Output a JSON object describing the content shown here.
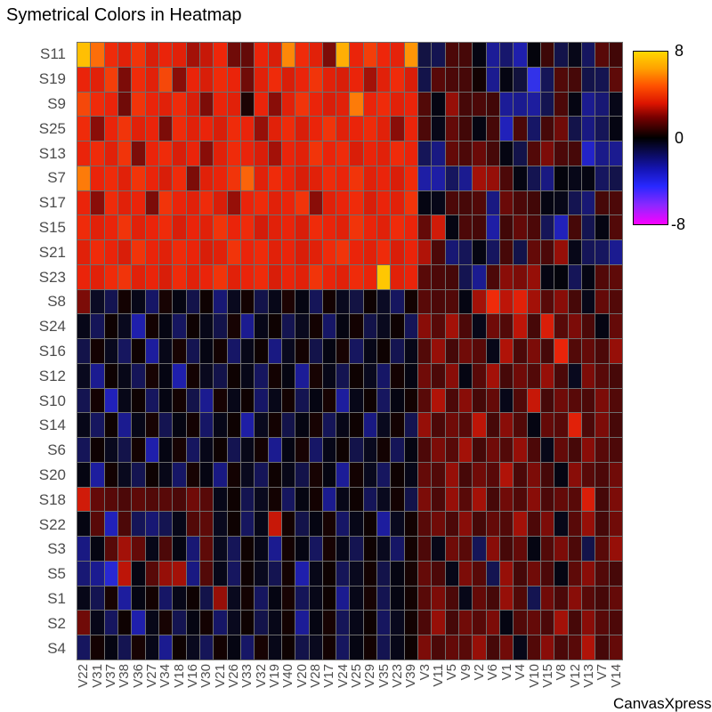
{
  "title": "Symetrical Colors in Heatmap",
  "watermark": "CanvasXpress",
  "colors": {
    "background": "#FFFFFF",
    "axis_label": "#4D4D4D",
    "grid_line": "#6E6E6E",
    "scale_max_color": "#FFD700",
    "scale_zero_color": "#000000",
    "scale_min_color": "#FF00FF"
  },
  "colorbar": {
    "ticks": {
      "max": "8",
      "zero": "0",
      "min": "-8"
    },
    "max": 8,
    "min": -8
  },
  "chart_data": {
    "type": "heatmap",
    "title": "Symetrical Colors in Heatmap",
    "zlim": [
      -8,
      8
    ],
    "legend_position": "right",
    "rows": [
      "S11",
      "S19",
      "S9",
      "S25",
      "S13",
      "S7",
      "S17",
      "S15",
      "S21",
      "S23",
      "S8",
      "S24",
      "S16",
      "S12",
      "S10",
      "S14",
      "S6",
      "S20",
      "S18",
      "S22",
      "S3",
      "S5",
      "S1",
      "S2",
      "S4"
    ],
    "columns": [
      "V22",
      "V31",
      "V37",
      "V38",
      "V36",
      "V27",
      "V34",
      "V18",
      "V16",
      "V30",
      "V21",
      "V26",
      "V33",
      "V32",
      "V19",
      "V40",
      "V20",
      "V28",
      "V17",
      "V24",
      "V25",
      "V29",
      "V35",
      "V23",
      "V39",
      "V3",
      "V11",
      "V5",
      "V9",
      "V2",
      "V6",
      "V1",
      "V4",
      "V10",
      "V15",
      "V8",
      "V12",
      "V13",
      "V7",
      "V14"
    ],
    "matrix": [
      [
        7.4,
        6.0,
        4.6,
        4.2,
        4.8,
        4.0,
        4.4,
        4.2,
        3.0,
        3.6,
        4.5,
        2.2,
        2.0,
        4.4,
        4.0,
        6.4,
        4.6,
        4.2,
        2.4,
        7.0,
        4.4,
        5.0,
        4.5,
        4.3,
        6.6,
        -1.1,
        -1.3,
        1.6,
        1.5,
        -0.3,
        -2.3,
        -1.7,
        -2.6,
        -0.2,
        1.3,
        -1.2,
        -0.4,
        -1.5,
        1.8,
        1.4
      ],
      [
        4.4,
        4.2,
        5.0,
        2.4,
        4.6,
        4.2,
        5.2,
        2.6,
        4.4,
        4.0,
        4.6,
        4.4,
        2.2,
        4.2,
        4.6,
        4.0,
        4.4,
        4.8,
        4.2,
        4.0,
        4.4,
        3.0,
        4.2,
        4.6,
        4.0,
        -1.2,
        1.8,
        1.6,
        1.5,
        0.4,
        -2.2,
        -0.3,
        -1.0,
        -3.6,
        -1.4,
        1.7,
        1.5,
        -1.2,
        -1.3,
        1.9
      ],
      [
        5.2,
        4.6,
        4.4,
        2.2,
        4.8,
        4.4,
        4.2,
        4.6,
        4.0,
        2.4,
        4.4,
        4.2,
        0.6,
        4.4,
        2.6,
        4.2,
        4.8,
        4.4,
        4.0,
        4.2,
        6.2,
        4.4,
        4.6,
        4.2,
        4.4,
        1.7,
        -0.3,
        2.8,
        1.5,
        1.6,
        1.4,
        -2.3,
        -2.2,
        -2.4,
        -1.3,
        1.6,
        -0.3,
        -2.2,
        -1.8,
        -0.4
      ],
      [
        4.6,
        2.6,
        4.4,
        4.8,
        4.2,
        4.4,
        2.4,
        4.6,
        4.2,
        4.4,
        4.0,
        4.6,
        4.4,
        2.8,
        4.2,
        4.6,
        4.0,
        4.4,
        4.8,
        4.2,
        4.4,
        4.6,
        4.2,
        2.6,
        4.4,
        1.6,
        -0.4,
        2.0,
        1.4,
        -0.3,
        1.5,
        -2.8,
        1.6,
        -1.6,
        1.5,
        2.2,
        -1.2,
        -2.0,
        -1.4,
        -0.3
      ],
      [
        4.4,
        4.6,
        4.2,
        4.8,
        2.4,
        4.4,
        4.6,
        4.0,
        4.4,
        2.6,
        4.2,
        4.6,
        4.4,
        4.0,
        3.0,
        4.4,
        4.2,
        4.8,
        4.4,
        4.6,
        4.0,
        4.4,
        4.2,
        4.6,
        4.4,
        -1.4,
        -2.0,
        2.0,
        1.6,
        2.1,
        1.5,
        -0.3,
        -1.2,
        1.7,
        2.4,
        1.6,
        1.5,
        -3.0,
        -2.1,
        -2.2
      ],
      [
        6.2,
        4.4,
        4.6,
        4.2,
        4.8,
        4.4,
        4.0,
        4.6,
        2.4,
        4.2,
        4.4,
        4.8,
        5.8,
        4.2,
        4.6,
        4.4,
        4.0,
        4.2,
        4.6,
        4.4,
        4.8,
        4.2,
        4.4,
        4.0,
        4.6,
        -2.5,
        -2.5,
        -1.5,
        -2.2,
        3.0,
        2.8,
        1.6,
        -0.3,
        -1.3,
        -2.0,
        -0.2,
        -0.4,
        -0.3,
        -1.5,
        -1.2
      ],
      [
        4.4,
        2.6,
        4.6,
        4.2,
        4.4,
        2.4,
        4.8,
        4.4,
        4.2,
        4.6,
        4.0,
        2.8,
        4.4,
        4.6,
        4.2,
        4.4,
        4.8,
        2.6,
        4.2,
        4.4,
        4.6,
        4.0,
        4.4,
        4.2,
        4.8,
        -0.3,
        -0.4,
        1.6,
        1.5,
        1.7,
        -2.0,
        2.1,
        1.6,
        1.4,
        -0.3,
        -0.4,
        -1.3,
        -1.8,
        1.5,
        1.6
      ],
      [
        4.6,
        4.2,
        4.4,
        4.8,
        4.2,
        4.4,
        4.6,
        4.0,
        4.4,
        4.2,
        4.8,
        4.4,
        4.6,
        3.9,
        4.2,
        4.4,
        4.0,
        4.6,
        4.4,
        4.2,
        4.8,
        4.4,
        4.2,
        4.6,
        4.4,
        2.0,
        3.8,
        -0.3,
        1.6,
        1.5,
        -2.5,
        1.4,
        2.0,
        1.6,
        -1.4,
        -2.8,
        1.5,
        -1.3,
        -0.3,
        1.7
      ],
      [
        4.2,
        4.6,
        4.4,
        4.0,
        4.8,
        4.4,
        4.2,
        4.6,
        4.4,
        4.0,
        4.2,
        4.8,
        4.4,
        4.6,
        4.2,
        4.4,
        4.0,
        4.2,
        4.6,
        4.8,
        4.4,
        4.2,
        4.6,
        4.0,
        4.4,
        3.2,
        1.6,
        -1.8,
        -1.4,
        -0.3,
        -1.5,
        1.5,
        -1.2,
        2.0,
        1.6,
        2.8,
        -0.4,
        -1.4,
        -1.5,
        -2.2
      ],
      [
        4.4,
        4.2,
        4.6,
        4.8,
        4.2,
        4.4,
        4.0,
        4.6,
        4.2,
        4.4,
        4.8,
        4.2,
        4.4,
        4.6,
        4.0,
        4.4,
        4.2,
        4.8,
        4.4,
        4.2,
        4.6,
        4.4,
        7.6,
        4.2,
        4.4,
        1.8,
        1.6,
        1.5,
        -1.3,
        -2.2,
        1.6,
        2.6,
        2.4,
        2.8,
        -0.3,
        -0.2,
        -1.4,
        -0.3,
        1.7,
        1.9
      ],
      [
        2.4,
        -0.6,
        -1.3,
        0.4,
        -0.4,
        -1.6,
        0.5,
        -0.3,
        -1.2,
        0.3,
        -1.8,
        -0.5,
        0.4,
        -1.2,
        -0.4,
        0.6,
        -0.3,
        -1.4,
        0.4,
        -0.5,
        -1.1,
        0.3,
        -0.6,
        -1.5,
        0.4,
        1.8,
        1.6,
        1.7,
        -0.3,
        3.0,
        4.6,
        3.4,
        4.2,
        3.0,
        1.8,
        2.6,
        1.5,
        -0.4,
        2.0,
        1.7
      ],
      [
        -0.4,
        -1.4,
        0.3,
        -0.5,
        -2.6,
        0.4,
        -0.3,
        -1.5,
        0.3,
        -0.4,
        -1.2,
        0.5,
        -2.2,
        -0.4,
        0.3,
        -1.3,
        -0.5,
        0.4,
        -1.6,
        -0.3,
        0.4,
        -1.2,
        -0.5,
        0.3,
        -1.4,
        2.6,
        1.8,
        3.0,
        1.6,
        -0.4,
        2.2,
        1.7,
        3.4,
        1.5,
        4.0,
        1.8,
        2.4,
        1.6,
        -0.3,
        2.0
      ],
      [
        -1.2,
        0.4,
        -0.5,
        -1.5,
        0.3,
        -2.4,
        -0.4,
        0.5,
        -1.3,
        -0.3,
        0.4,
        -1.6,
        -0.4,
        0.3,
        -2.0,
        -0.5,
        0.4,
        -1.2,
        -0.3,
        0.5,
        -1.5,
        -0.4,
        0.3,
        -1.3,
        -0.4,
        1.7,
        2.8,
        1.5,
        2.2,
        1.8,
        -0.4,
        3.2,
        1.6,
        2.4,
        1.5,
        4.4,
        1.7,
        2.0,
        1.6,
        2.8
      ],
      [
        -0.5,
        -2.2,
        0.3,
        -0.4,
        -1.4,
        0.5,
        -0.3,
        -2.6,
        0.4,
        -0.5,
        -1.2,
        0.3,
        -0.4,
        -1.5,
        0.4,
        -0.3,
        -2.3,
        0.5,
        -0.4,
        -1.3,
        0.3,
        -0.5,
        -1.6,
        0.4,
        -0.3,
        2.2,
        1.6,
        2.6,
        -0.3,
        1.8,
        3.0,
        1.5,
        2.2,
        1.7,
        2.8,
        1.6,
        -0.5,
        2.4,
        1.8,
        1.5
      ],
      [
        -1.3,
        0.4,
        -2.8,
        -0.4,
        0.3,
        -1.5,
        -0.3,
        0.4,
        -1.2,
        -2.2,
        0.5,
        -0.4,
        0.3,
        -1.6,
        -0.4,
        0.4,
        -1.3,
        -0.3,
        0.5,
        -2.4,
        -0.4,
        0.3,
        -1.5,
        -0.3,
        0.4,
        1.8,
        3.2,
        1.6,
        2.6,
        1.5,
        2.0,
        -0.4,
        1.7,
        3.6,
        1.5,
        2.2,
        1.8,
        1.6,
        2.4,
        1.7
      ],
      [
        -0.4,
        -1.5,
        0.3,
        -2.2,
        -0.4,
        0.5,
        -1.3,
        -0.3,
        0.4,
        -1.6,
        -0.4,
        0.3,
        -2.5,
        -0.5,
        0.4,
        -1.2,
        -0.3,
        0.5,
        -1.4,
        -0.4,
        0.3,
        -2.0,
        -0.5,
        0.4,
        -1.3,
        2.8,
        1.6,
        2.2,
        1.8,
        3.4,
        1.5,
        2.6,
        1.7,
        -0.3,
        2.0,
        1.8,
        4.2,
        1.6,
        2.4,
        1.5
      ],
      [
        -1.4,
        0.3,
        -0.5,
        -1.2,
        0.4,
        -2.6,
        -0.3,
        0.5,
        -1.5,
        -0.4,
        0.3,
        -1.3,
        -0.4,
        0.4,
        -2.2,
        -0.3,
        0.5,
        -1.6,
        -0.4,
        0.3,
        -1.2,
        -0.5,
        0.4,
        -1.4,
        -0.3,
        1.6,
        2.4,
        1.8,
        3.0,
        1.5,
        2.2,
        1.7,
        2.8,
        1.6,
        -0.4,
        2.0,
        1.5,
        2.6,
        1.8,
        1.6
      ],
      [
        -0.3,
        -2.4,
        0.4,
        -0.5,
        -1.3,
        0.3,
        -0.4,
        -1.6,
        0.5,
        -0.3,
        -2.0,
        0.4,
        -0.5,
        -1.4,
        0.3,
        -0.4,
        -1.2,
        0.5,
        -0.3,
        -2.3,
        0.4,
        -0.5,
        -1.5,
        0.3,
        -0.4,
        2.0,
        1.7,
        2.8,
        1.5,
        2.2,
        1.8,
        3.2,
        1.6,
        2.4,
        1.5,
        -0.3,
        2.6,
        1.8,
        1.6,
        2.2
      ],
      [
        3.8,
        2.0,
        1.8,
        1.6,
        1.9,
        1.7,
        1.8,
        1.6,
        2.2,
        1.8,
        -0.4,
        0.3,
        -1.3,
        -0.5,
        0.4,
        -1.5,
        -0.3,
        0.4,
        -2.2,
        -0.4,
        0.3,
        -1.4,
        -0.5,
        0.4,
        -1.2,
        2.4,
        1.6,
        2.8,
        1.8,
        3.0,
        1.5,
        2.2,
        1.7,
        2.6,
        1.6,
        2.0,
        1.8,
        4.0,
        1.5,
        2.4
      ],
      [
        -0.3,
        1.8,
        -2.8,
        1.6,
        -1.4,
        -1.8,
        -1.3,
        -0.4,
        1.7,
        1.9,
        -0.5,
        0.3,
        -1.5,
        -0.4,
        3.6,
        0.4,
        -1.2,
        -0.3,
        0.5,
        -1.6,
        -0.4,
        0.3,
        -2.4,
        -0.5,
        0.4,
        1.8,
        2.2,
        1.6,
        2.6,
        1.5,
        2.0,
        1.7,
        3.0,
        1.6,
        2.4,
        -0.4,
        1.8,
        2.8,
        1.5,
        2.2
      ],
      [
        -2.0,
        -0.3,
        1.8,
        3.0,
        2.0,
        -0.4,
        1.6,
        -0.3,
        -1.8,
        1.9,
        -0.5,
        -1.4,
        0.3,
        -0.4,
        -2.2,
        0.4,
        -0.3,
        -1.5,
        0.5,
        -0.4,
        -1.3,
        0.3,
        -0.5,
        -1.6,
        0.4,
        1.6,
        -0.4,
        2.2,
        1.8,
        -1.4,
        2.6,
        1.5,
        2.0,
        -0.3,
        1.7,
        2.4,
        1.6,
        -1.2,
        1.8,
        2.8
      ],
      [
        -1.8,
        -2.2,
        -3.2,
        3.4,
        -0.3,
        1.8,
        2.8,
        3.0,
        -2.0,
        1.7,
        -0.4,
        -1.5,
        0.3,
        -0.5,
        -1.3,
        0.4,
        -2.6,
        -0.4,
        0.3,
        -1.4,
        -0.5,
        0.4,
        -1.2,
        -0.3,
        0.5,
        2.0,
        1.6,
        -0.4,
        2.4,
        1.8,
        -1.3,
        2.8,
        1.5,
        2.2,
        1.6,
        -0.3,
        1.9,
        2.6,
        1.7,
        1.5
      ],
      [
        -0.4,
        -1.3,
        0.5,
        -2.4,
        -0.3,
        0.4,
        -1.6,
        -0.4,
        0.3,
        -1.2,
        2.8,
        -0.5,
        0.4,
        -1.5,
        -0.3,
        0.5,
        -1.4,
        -0.4,
        0.3,
        -2.2,
        -0.4,
        0.5,
        -1.3,
        -0.3,
        0.4,
        1.8,
        2.4,
        1.6,
        -0.4,
        2.0,
        1.5,
        2.8,
        1.7,
        -1.3,
        2.2,
        1.6,
        2.6,
        1.8,
        1.5,
        2.0
      ],
      [
        2.2,
        -0.4,
        -1.5,
        0.3,
        -2.6,
        -0.4,
        0.5,
        -1.3,
        -0.3,
        0.4,
        -1.6,
        -0.5,
        0.3,
        -1.2,
        -0.4,
        0.4,
        -2.3,
        -0.3,
        0.5,
        -1.4,
        -0.4,
        0.3,
        -1.5,
        -0.5,
        0.4,
        1.6,
        2.8,
        1.5,
        2.2,
        1.8,
        2.4,
        -0.3,
        1.7,
        2.0,
        1.6,
        3.0,
        1.5,
        2.6,
        1.8,
        1.6
      ],
      [
        -1.5,
        0.4,
        -0.3,
        -1.3,
        0.5,
        -0.4,
        -2.2,
        0.3,
        -0.5,
        -1.4,
        0.4,
        -0.3,
        -1.6,
        0.5,
        -0.4,
        0.3,
        -1.2,
        -0.5,
        0.4,
        -1.5,
        -0.3,
        0.4,
        -1.3,
        -0.4,
        0.3,
        2.4,
        1.6,
        2.0,
        1.8,
        2.8,
        1.5,
        2.2,
        -0.4,
        1.7,
        2.6,
        1.6,
        1.8,
        3.2,
        1.5,
        2.0
      ]
    ]
  }
}
